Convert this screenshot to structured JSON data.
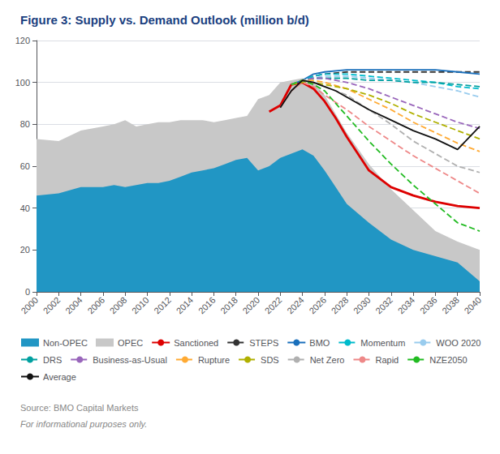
{
  "chart_data": {
    "type": "line",
    "title": "Figure 3: Supply vs. Demand Outlook (million b/d)",
    "annotations": [
      "Source: BMO Capital Markets",
      "For informational purposes only."
    ],
    "xlim": [
      2000,
      2040
    ],
    "xticks": [
      2000,
      2002,
      2004,
      2006,
      2008,
      2010,
      2012,
      2014,
      2016,
      2018,
      2020,
      2022,
      2024,
      2026,
      2028,
      2030,
      2032,
      2034,
      2036,
      2038,
      2040
    ],
    "ylim": [
      0,
      120
    ],
    "yticks": [
      0,
      20,
      40,
      60,
      80,
      100,
      120
    ],
    "grid": true,
    "legend": "bottom",
    "series": [
      {
        "name": "Non-OPEC",
        "type": "area",
        "color": "#2196c4",
        "x": [
          2000,
          2002,
          2004,
          2005,
          2006,
          2007,
          2008,
          2009,
          2010,
          2011,
          2012,
          2013,
          2014,
          2015,
          2016,
          2017,
          2018,
          2019,
          2020,
          2021,
          2022,
          2023,
          2024,
          2025,
          2026,
          2027,
          2028,
          2030,
          2032,
          2034,
          2036,
          2038,
          2040
        ],
        "values": [
          46,
          47,
          50,
          50,
          50,
          51,
          50,
          51,
          52,
          52,
          53,
          55,
          57,
          58,
          59,
          61,
          63,
          64,
          58,
          60,
          64,
          66,
          68,
          65,
          58,
          50,
          42,
          33,
          25,
          20,
          17,
          14,
          5
        ]
      },
      {
        "name": "OPEC",
        "type": "area",
        "color": "#c8c8c8",
        "x": [
          2000,
          2002,
          2004,
          2005,
          2006,
          2007,
          2008,
          2009,
          2010,
          2011,
          2012,
          2013,
          2014,
          2015,
          2016,
          2017,
          2018,
          2019,
          2020,
          2021,
          2022,
          2023,
          2024,
          2025,
          2026,
          2027,
          2028,
          2030,
          2032,
          2034,
          2036,
          2038,
          2040
        ],
        "values": [
          73,
          72,
          77,
          78,
          79,
          80,
          82,
          79,
          80,
          81,
          81,
          82,
          82,
          82,
          81,
          82,
          83,
          84,
          92,
          94,
          100,
          101,
          102,
          100,
          94,
          85,
          76,
          61,
          49,
          39,
          29,
          24,
          20
        ]
      },
      {
        "name": "Sanctioned",
        "type": "line",
        "line_style": "solid",
        "color": "#dd0000",
        "x": [
          2021,
          2022,
          2023,
          2024,
          2025,
          2026,
          2027,
          2028,
          2030,
          2032,
          2034,
          2036,
          2038,
          2040
        ],
        "values": [
          86,
          89,
          99,
          100,
          97,
          91,
          83,
          74,
          58,
          50,
          46,
          43,
          41,
          40
        ]
      },
      {
        "name": "STEPS",
        "type": "line",
        "line_style": "dashed",
        "color": "#333333",
        "x": [
          2023,
          2024,
          2025,
          2026,
          2028,
          2030,
          2032,
          2034,
          2036,
          2038,
          2040
        ],
        "values": [
          99,
          101,
          103,
          104,
          105,
          105,
          105,
          105,
          105,
          105,
          105
        ]
      },
      {
        "name": "BMO",
        "type": "line",
        "line_style": "solid",
        "color": "#1a6fbb",
        "x": [
          2023,
          2024,
          2025,
          2026,
          2028,
          2030,
          2032,
          2034,
          2036,
          2038,
          2040
        ],
        "values": [
          99,
          101,
          104,
          105,
          106,
          106,
          106,
          106,
          106,
          105,
          104
        ]
      },
      {
        "name": "Momentum",
        "type": "line",
        "line_style": "dashed",
        "color": "#00bbcc",
        "x": [
          2023,
          2024,
          2025,
          2026,
          2028,
          2030,
          2032,
          2034,
          2036,
          2038,
          2040
        ],
        "values": [
          99,
          101,
          103,
          104,
          104,
          103,
          102,
          101,
          100,
          98,
          97
        ]
      },
      {
        "name": "WOO 2020",
        "type": "line",
        "line_style": "dashed",
        "color": "#99ccee",
        "x": [
          2023,
          2024,
          2025,
          2026,
          2028,
          2030,
          2032,
          2034,
          2036,
          2038,
          2040
        ],
        "values": [
          99,
          101,
          102,
          103,
          103,
          102,
          101,
          100,
          98,
          96,
          93
        ]
      },
      {
        "name": "DRS",
        "type": "line",
        "line_style": "dashed",
        "color": "#00a0a0",
        "x": [
          2023,
          2024,
          2025,
          2026,
          2028,
          2030,
          2032,
          2034,
          2036,
          2038,
          2040
        ],
        "values": [
          99,
          101,
          102,
          102,
          102,
          101,
          101,
          100,
          100,
          99,
          98
        ]
      },
      {
        "name": "Business-as-Usual",
        "type": "line",
        "line_style": "dashed",
        "color": "#9966bb",
        "x": [
          2023,
          2024,
          2025,
          2026,
          2028,
          2030,
          2032,
          2034,
          2036,
          2038,
          2040
        ],
        "values": [
          99,
          101,
          102,
          102,
          100,
          97,
          93,
          89,
          85,
          81,
          78
        ]
      },
      {
        "name": "Rupture",
        "type": "line",
        "line_style": "dashed",
        "color": "#ffaa33",
        "x": [
          2023,
          2024,
          2025,
          2026,
          2028,
          2030,
          2032,
          2034,
          2036,
          2038,
          2040
        ],
        "values": [
          99,
          101,
          101,
          100,
          97,
          92,
          87,
          81,
          76,
          71,
          67
        ]
      },
      {
        "name": "SDS",
        "type": "line",
        "line_style": "dashed",
        "color": "#b0b000",
        "x": [
          2023,
          2024,
          2025,
          2026,
          2028,
          2030,
          2032,
          2034,
          2036,
          2038,
          2040
        ],
        "values": [
          99,
          100,
          100,
          99,
          97,
          94,
          90,
          85,
          81,
          77,
          73
        ]
      },
      {
        "name": "Net Zero",
        "type": "line",
        "line_style": "dashed",
        "color": "#b0b0b0",
        "x": [
          2023,
          2024,
          2025,
          2026,
          2028,
          2030,
          2032,
          2034,
          2036,
          2038,
          2040
        ],
        "values": [
          99,
          101,
          100,
          98,
          94,
          87,
          80,
          72,
          66,
          60,
          57
        ]
      },
      {
        "name": "Rapid",
        "type": "line",
        "line_style": "dashed",
        "color": "#ee8888",
        "x": [
          2022,
          2023,
          2024,
          2025,
          2026,
          2028,
          2030,
          2032,
          2034,
          2036,
          2038,
          2040
        ],
        "values": [
          88,
          96,
          100,
          98,
          94,
          87,
          79,
          72,
          65,
          59,
          53,
          47
        ]
      },
      {
        "name": "NZE2050",
        "type": "line",
        "line_style": "dashed",
        "color": "#22bb22",
        "x": [
          2023,
          2024,
          2025,
          2026,
          2027,
          2028,
          2030,
          2032,
          2034,
          2036,
          2038,
          2040
        ],
        "values": [
          99,
          101,
          99,
          96,
          90,
          84,
          72,
          61,
          51,
          42,
          33,
          29
        ]
      },
      {
        "name": "Average",
        "type": "line",
        "line_style": "solid",
        "color": "#111111",
        "x": [
          2022,
          2023,
          2024,
          2025,
          2026,
          2027,
          2028,
          2030,
          2032,
          2034,
          2036,
          2038,
          2040
        ],
        "values": [
          88,
          96,
          101,
          100,
          98,
          96,
          93,
          87,
          82,
          77,
          73,
          68,
          79
        ]
      }
    ]
  }
}
